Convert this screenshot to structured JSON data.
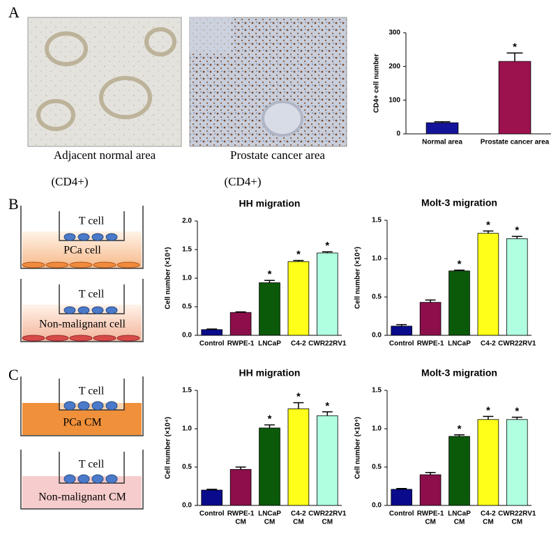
{
  "panel_labels": [
    "A",
    "B",
    "C"
  ],
  "images": [
    {
      "caption": "Adjacent normal area",
      "marker": "(CD4+)"
    },
    {
      "caption": "Prostate cancer area",
      "marker": "(CD4+)"
    }
  ],
  "diagrams": [
    {
      "top": "T cell",
      "bottom": "PCa cell"
    },
    {
      "top": "T cell",
      "bottom": "Non-malignant cell"
    },
    {
      "top": "T cell",
      "bottom": "PCa  CM"
    },
    {
      "top": "T cell",
      "bottom": "Non-malignant CM"
    }
  ],
  "chart_data": [
    {
      "type": "bar",
      "y_label": "CD4+ cell number",
      "categories": [
        "Normal area",
        "Prostate cancer area"
      ],
      "values": [
        33,
        215
      ],
      "errors": [
        3,
        25
      ],
      "colors": [
        "#14149a",
        "#9c124e"
      ],
      "ylim": [
        0,
        300
      ],
      "yticks": [
        0,
        100,
        200,
        300
      ],
      "annotations": [
        {
          "index": 1,
          "text": "*"
        }
      ]
    },
    {
      "type": "bar",
      "title": "HH migration",
      "y_label": "Cell number (×10⁴)",
      "categories": [
        "Control",
        "RWPE-1",
        "LNCaP",
        "C4-2",
        "CWR22RV1"
      ],
      "values": [
        0.1,
        0.4,
        0.92,
        1.29,
        1.44
      ],
      "errors": [
        0.01,
        0.01,
        0.04,
        0.02,
        0.02
      ],
      "colors": [
        "#0a0a8c",
        "#8c0f4b",
        "#0a5a0a",
        "#ffff1a",
        "#b0ffe0"
      ],
      "ylim": [
        0,
        2
      ],
      "yticks": [
        {
          "value": 0,
          "label": "0.0"
        },
        0.5,
        {
          "value": 1,
          "label": "1.0"
        },
        1.5,
        {
          "value": 2,
          "label": "2.0"
        }
      ],
      "annotations": [
        {
          "index": 2,
          "text": "*"
        },
        {
          "index": 3,
          "text": "*"
        },
        {
          "index": 4,
          "text": "*"
        }
      ]
    },
    {
      "type": "bar",
      "title": "Molt-3 migration",
      "y_label": "Cell number (×10⁴)",
      "categories": [
        "Control",
        "RWPE-1",
        "LNCaP",
        "C4-2",
        "CWR22RV1"
      ],
      "values": [
        0.12,
        0.43,
        0.84,
        1.33,
        1.26
      ],
      "errors": [
        0.02,
        0.03,
        0.01,
        0.03,
        0.03
      ],
      "colors": [
        "#0a0a8c",
        "#8c0f4b",
        "#0a5a0a",
        "#ffff1a",
        "#b0ffe0"
      ],
      "ylim": [
        0,
        1.5
      ],
      "yticks": [
        {
          "value": 0,
          "label": "0.0"
        },
        0.5,
        {
          "value": 1,
          "label": "1.0"
        },
        1.5
      ],
      "annotations": [
        {
          "index": 2,
          "text": "*"
        },
        {
          "index": 3,
          "text": "*"
        },
        {
          "index": 4,
          "text": "*"
        }
      ]
    },
    {
      "type": "bar",
      "title": "HH migration",
      "y_label": "Cell number (×10⁴)",
      "categories": [
        [
          "Control"
        ],
        [
          "RWPE-1",
          "CM"
        ],
        [
          "LNCaP",
          "CM"
        ],
        [
          "C4-2",
          "CM"
        ],
        [
          "CWR22RV1",
          "CM"
        ]
      ],
      "values": [
        0.2,
        0.47,
        1.01,
        1.26,
        1.17
      ],
      "errors": [
        0.01,
        0.03,
        0.04,
        0.08,
        0.05
      ],
      "colors": [
        "#0a0a8c",
        "#8c0f4b",
        "#0a5a0a",
        "#ffff1a",
        "#b0ffe0"
      ],
      "ylim": [
        0,
        1.5
      ],
      "yticks": [
        {
          "value": 0,
          "label": "0.0"
        },
        0.5,
        {
          "value": 1,
          "label": "1.0"
        },
        1.5
      ],
      "annotations": [
        {
          "index": 2,
          "text": "*"
        },
        {
          "index": 3,
          "text": "*"
        },
        {
          "index": 4,
          "text": "*"
        }
      ]
    },
    {
      "type": "bar",
      "title": "Molt-3 migration",
      "y_label": "Cell number (×10⁴)",
      "categories": [
        [
          "Control"
        ],
        [
          "RWPE-1",
          "CM"
        ],
        [
          "LNCaP",
          "CM"
        ],
        [
          "C4-2",
          "CM"
        ],
        [
          "CWR22RV1",
          "CM"
        ]
      ],
      "values": [
        0.21,
        0.4,
        0.9,
        1.12,
        1.12
      ],
      "errors": [
        0.01,
        0.03,
        0.02,
        0.04,
        0.03
      ],
      "colors": [
        "#0a0a8c",
        "#8c0f4b",
        "#0a5a0a",
        "#ffff1a",
        "#b0ffe0"
      ],
      "ylim": [
        0,
        1.5
      ],
      "yticks": [
        {
          "value": 0,
          "label": "0.0"
        },
        0.5,
        {
          "value": 1,
          "label": "1.0"
        },
        1.5
      ],
      "annotations": [
        {
          "index": 2,
          "text": "*"
        },
        {
          "index": 3,
          "text": "*"
        },
        {
          "index": 4,
          "text": "*"
        }
      ]
    }
  ]
}
